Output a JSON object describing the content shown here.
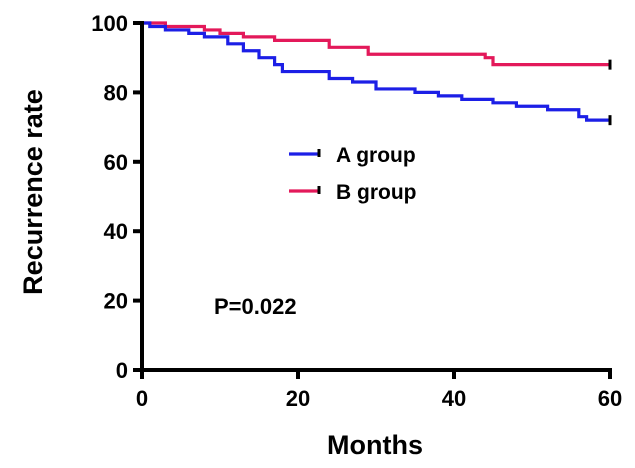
{
  "chart_data": {
    "type": "line",
    "xlabel": "Months",
    "ylabel": "Recurrence rate",
    "xlim": [
      0,
      60
    ],
    "ylim": [
      0,
      100
    ],
    "xticks": [
      "0",
      "20",
      "40",
      "60"
    ],
    "yticks": [
      "0",
      "20",
      "40",
      "60",
      "80",
      "100"
    ],
    "grid": false,
    "legend_position": "center-right",
    "annotation": "P=0.022",
    "series": [
      {
        "name": "A group",
        "color": "#1c1fe6",
        "step": true,
        "x": [
          0,
          1,
          3,
          6,
          8,
          11,
          13,
          15,
          17,
          18,
          24,
          27,
          30,
          35,
          38,
          41,
          45,
          48,
          52,
          56,
          57,
          60
        ],
        "y": [
          100,
          99,
          98,
          97,
          96,
          94,
          92,
          90,
          88,
          86,
          84,
          83,
          81,
          80,
          79,
          78,
          77,
          76,
          75,
          73,
          72,
          72
        ],
        "censored_x": [
          60
        ],
        "censored_y": [
          72
        ]
      },
      {
        "name": "B group",
        "color": "#e3195a",
        "step": true,
        "x": [
          0,
          3,
          8,
          10,
          13,
          17,
          24,
          29,
          44,
          45,
          60
        ],
        "y": [
          100,
          99,
          98,
          97,
          96,
          95,
          93,
          91,
          90,
          88,
          88
        ],
        "censored_x": [
          60
        ],
        "censored_y": [
          88
        ]
      }
    ]
  }
}
